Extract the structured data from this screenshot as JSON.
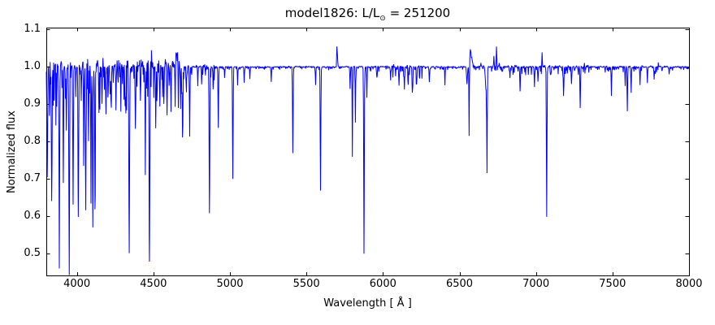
{
  "title": {
    "prefix": "model1826: L/L",
    "sun_symbol": "⊙",
    "suffix": " = 251200",
    "full": "model1826: L/L⊙ = 251200"
  },
  "chart_data": {
    "type": "line",
    "subtype": "stellar-spectrum",
    "title": "model1826: L/L⊙ = 251200",
    "xlabel": "Wavelength [ Å ]",
    "ylabel": "Normalized flux",
    "xlim": [
      3800,
      8000
    ],
    "ylim": [
      0.441,
      1.105
    ],
    "xticks": [
      4000,
      4500,
      5000,
      5500,
      6000,
      6500,
      7000,
      7500,
      8000
    ],
    "yticks": [
      0.5,
      0.6,
      0.7,
      0.8,
      0.9,
      1.0,
      1.1
    ],
    "grid": false,
    "legend": null,
    "line_color": "#0000ff",
    "axes_color": "#000000",
    "background": "#ffffff",
    "continuum_level": 1.0,
    "noise_seed": 42,
    "absorption_lines": {
      "columns": [
        "wavelength_A",
        "depth_below_continuum",
        "sigma_A"
      ],
      "rows": [
        [
          3806,
          0.3,
          2.2
        ],
        [
          3820,
          0.13,
          1.6
        ],
        [
          3835,
          0.36,
          2.2
        ],
        [
          3851,
          0.09,
          1.6
        ],
        [
          3868,
          0.1,
          1.6
        ],
        [
          3885,
          0.4,
          2.4
        ],
        [
          3911,
          0.31,
          1.8
        ],
        [
          3931,
          0.17,
          1.8
        ],
        [
          3950,
          0.51,
          2.2
        ],
        [
          3975,
          0.26,
          2.0
        ],
        [
          3993,
          0.07,
          1.5
        ],
        [
          4009,
          0.42,
          2.0
        ],
        [
          4028,
          0.09,
          1.6
        ],
        [
          4044,
          0.17,
          1.6
        ],
        [
          4058,
          0.38,
          1.8
        ],
        [
          4076,
          0.18,
          1.6
        ],
        [
          4092,
          0.33,
          1.8
        ],
        [
          4104,
          0.43,
          2.2
        ],
        [
          4118,
          0.38,
          1.8
        ],
        [
          4144,
          0.12,
          1.8
        ],
        [
          4164,
          0.1,
          1.6
        ],
        [
          4190,
          0.13,
          1.8
        ],
        [
          4222,
          0.09,
          1.6
        ],
        [
          4255,
          0.12,
          1.6
        ],
        [
          4287,
          0.1,
          1.6
        ],
        [
          4317,
          0.08,
          1.6
        ],
        [
          4342,
          0.44,
          2.4
        ],
        [
          4382,
          0.16,
          1.8
        ],
        [
          4415,
          0.09,
          1.6
        ],
        [
          4447,
          0.2,
          1.8
        ],
        [
          4474,
          0.52,
          2.2
        ],
        [
          4515,
          0.12,
          1.8
        ],
        [
          4542,
          0.11,
          1.8
        ],
        [
          4568,
          0.08,
          1.6
        ],
        [
          4589,
          0.13,
          1.8
        ],
        [
          4615,
          0.12,
          1.8
        ],
        [
          4642,
          0.13,
          1.5
        ],
        [
          4663,
          0.14,
          1.5
        ],
        [
          4677,
          0.11,
          1.5
        ],
        [
          4690,
          0.19,
          1.8
        ],
        [
          4716,
          0.05,
          1.5
        ],
        [
          4737,
          0.17,
          1.8
        ],
        [
          4790,
          0.05,
          1.5
        ],
        [
          4815,
          0.04,
          1.5
        ],
        [
          4866,
          0.39,
          2.2
        ],
        [
          4890,
          0.06,
          1.5
        ],
        [
          4924,
          0.16,
          1.8
        ],
        [
          4965,
          0.03,
          1.5
        ],
        [
          5019,
          0.3,
          2.0
        ],
        [
          5050,
          0.05,
          1.5
        ],
        [
          5093,
          0.04,
          1.6
        ],
        [
          5130,
          0.03,
          1.5
        ],
        [
          5270,
          0.04,
          1.5
        ],
        [
          5411,
          0.23,
          2.0
        ],
        [
          5560,
          0.05,
          1.5
        ],
        [
          5592,
          0.33,
          2.0
        ],
        [
          5785,
          0.06,
          1.5
        ],
        [
          5800,
          0.24,
          1.5
        ],
        [
          5820,
          0.15,
          1.5
        ],
        [
          5876,
          0.5,
          2.0
        ],
        [
          5895,
          0.08,
          1.5
        ],
        [
          5960,
          0.03,
          2.0
        ],
        [
          6050,
          0.025,
          2.0
        ],
        [
          6105,
          0.05,
          2.0
        ],
        [
          6140,
          0.06,
          2.0
        ],
        [
          6165,
          0.05,
          2.0
        ],
        [
          6192,
          0.07,
          2.0
        ],
        [
          6220,
          0.05,
          2.0
        ],
        [
          6303,
          0.04,
          1.8
        ],
        [
          6405,
          0.05,
          1.5
        ],
        [
          6549,
          0.045,
          3.0
        ],
        [
          6563,
          0.17,
          1.4
        ],
        [
          6674,
          0.06,
          4.5
        ],
        [
          6680,
          0.26,
          1.8
        ],
        [
          6830,
          0.03,
          1.8
        ],
        [
          6896,
          0.07,
          1.8
        ],
        [
          6990,
          0.05,
          1.8
        ],
        [
          7013,
          0.04,
          1.8
        ],
        [
          7070,
          0.4,
          2.0
        ],
        [
          7180,
          0.08,
          1.8
        ],
        [
          7232,
          0.05,
          1.8
        ],
        [
          7289,
          0.11,
          1.8
        ],
        [
          7493,
          0.06,
          1.8
        ],
        [
          7583,
          0.05,
          1.6
        ],
        [
          7597,
          0.12,
          1.8
        ],
        [
          7622,
          0.07,
          1.6
        ],
        [
          7680,
          0.05,
          1.6
        ],
        [
          7728,
          0.045,
          1.6
        ],
        [
          7772,
          0.03,
          1.6
        ],
        [
          7870,
          0.02,
          1.6
        ]
      ]
    },
    "emission_lines": {
      "columns": [
        "wavelength_A",
        "height_above_continuum",
        "sigma_blue_A",
        "sigma_red_A"
      ],
      "rows": [
        [
          4487,
          0.045,
          1.5,
          1.5
        ],
        [
          4578,
          0.02,
          1.5,
          1.5
        ],
        [
          4652,
          0.035,
          9,
          9
        ],
        [
          4658,
          0.015,
          2,
          2
        ],
        [
          4665,
          0.012,
          1.5,
          1.5
        ],
        [
          5699,
          0.055,
          1.5,
          3.5
        ],
        [
          6571,
          0.045,
          3,
          9
        ],
        [
          6640,
          0.01,
          2,
          2
        ],
        [
          6655,
          0.008,
          2,
          2
        ],
        [
          6725,
          0.035,
          1.5,
          1.5
        ],
        [
          6742,
          0.058,
          1.5,
          2.0
        ],
        [
          6760,
          0.01,
          1.5,
          1.5
        ],
        [
          7040,
          0.04,
          1.5,
          1.5
        ],
        [
          7317,
          0.012,
          1.5,
          1.5
        ],
        [
          7463,
          0.018,
          1.5,
          1.5
        ],
        [
          7799,
          0.012,
          1.5,
          1.5
        ]
      ]
    },
    "noise_regions": {
      "columns": [
        "from_A",
        "to_A",
        "max_dip_amplitude"
      ],
      "rows": [
        [
          3800,
          4000,
          0.055
        ],
        [
          4000,
          4200,
          0.05
        ],
        [
          4200,
          4350,
          0.042
        ],
        [
          4350,
          4550,
          0.04
        ],
        [
          4550,
          4700,
          0.03
        ],
        [
          4700,
          4900,
          0.012
        ],
        [
          4900,
          5700,
          0.0025
        ],
        [
          5700,
          6050,
          0.004
        ],
        [
          6050,
          6260,
          0.014
        ],
        [
          6260,
          6520,
          0.003
        ],
        [
          6520,
          6800,
          0.006
        ],
        [
          6800,
          7350,
          0.008
        ],
        [
          7350,
          7800,
          0.006
        ],
        [
          7800,
          8000,
          0.004
        ]
      ]
    }
  }
}
